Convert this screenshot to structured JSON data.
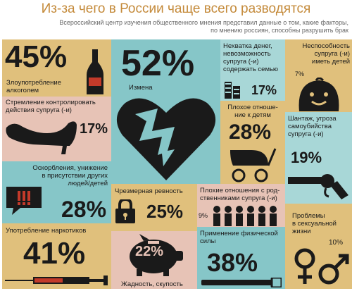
{
  "header": {
    "title": "Из-за чего в России чаще всего разводятся",
    "subtitle_line1": "Всероссийский центр изучения общественного мнения представил данные о том, какие факторы,",
    "subtitle_line2": "по мнению россиян, способны разрушить брак"
  },
  "tiles": {
    "alcohol": {
      "value": "45%",
      "label_line1": "Злоупотребление",
      "label_line2": "алкоголем",
      "color": "#e0c07c"
    },
    "infidelity": {
      "value": "52%",
      "label": "Измена",
      "color": "#86c6c8"
    },
    "money": {
      "label_line1": "Нехватка денег,",
      "label_line2": "невозможность",
      "label_line3": "супруга (-и)",
      "label_line4": "содержать семью",
      "value": "17%",
      "color": "#a8d7d7"
    },
    "infertility": {
      "label_line1": "Неспособность",
      "label_line2": "супруга (-и)",
      "label_line3": "иметь детей",
      "value": "7%",
      "color": "#e0c07c"
    },
    "control": {
      "label_line1": "Стремление контролировать",
      "label_line2": "действия супруга (-и)",
      "value": "17%",
      "color": "#e7c3b6"
    },
    "children": {
      "label_line1": "Плохое отноше-",
      "label_line2": "ние к детям",
      "value": "28%",
      "color": "#e0c07c"
    },
    "blackmail": {
      "label_line1": "Шантаж, угроза",
      "label_line2": "самоубийства",
      "label_line3": "супруга (-и)",
      "value": "19%",
      "color": "#a8d7d7"
    },
    "insults": {
      "label_line1": "Оскорбления, унижение",
      "label_line2": "в присутствии других",
      "label_line3": "людей/детей",
      "value": "28%",
      "color": "#86c6c8"
    },
    "jealousy": {
      "label": "Чрезмерная ревность",
      "value": "25%",
      "color": "#e0c07c"
    },
    "relatives": {
      "label_line1": "Плохие отношения с род-",
      "label_line2": "ственниками супруга (-и)",
      "value": "9%",
      "color": "#e7c3b6"
    },
    "drugs": {
      "label": "Употребление наркотиков",
      "value": "41%",
      "color": "#e0c07c"
    },
    "greed": {
      "value": "22%",
      "label": "Жадность, скупость",
      "color": "#e7c3b6"
    },
    "violence": {
      "label_line1": "Применение физической",
      "label_line2": "силы",
      "value": "38%",
      "color": "#86c6c8"
    },
    "sex": {
      "label_line1": "Проблемы",
      "label_line2": "в сексуальной",
      "label_line3": "жизни",
      "value": "10%",
      "color": "#e0c07c"
    }
  }
}
